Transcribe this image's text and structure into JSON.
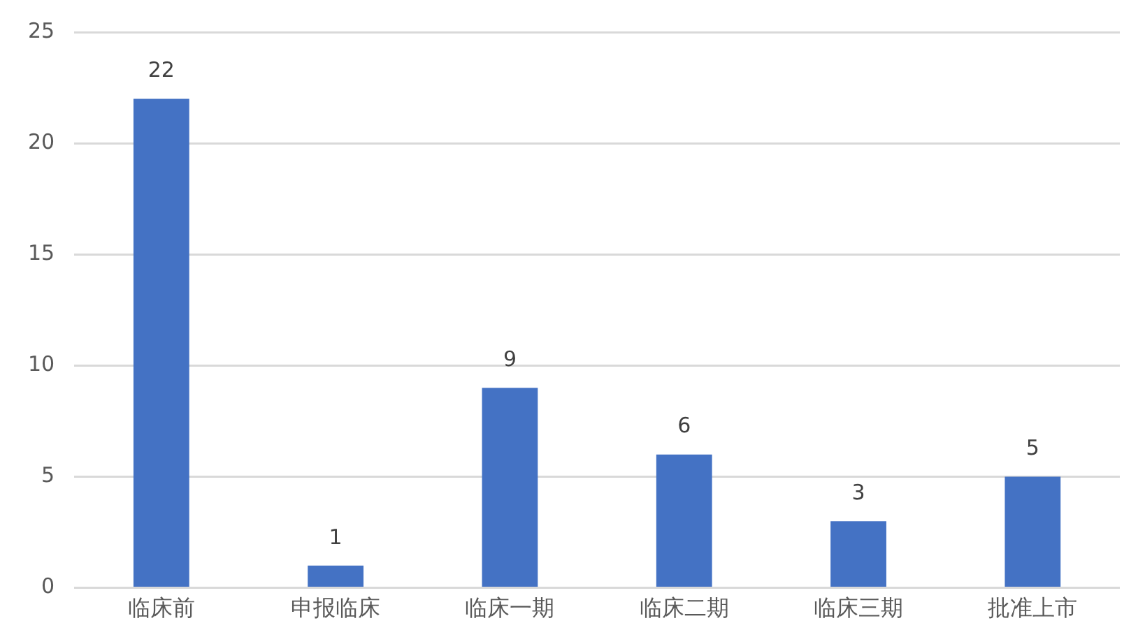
{
  "chart_data": {
    "type": "bar",
    "categories": [
      "临床前",
      "申报临床",
      "临床一期",
      "临床二期",
      "临床三期",
      "批准上市"
    ],
    "values": [
      22,
      1,
      9,
      6,
      3,
      5
    ],
    "color": "#4472c4",
    "ylim": [
      0,
      25
    ],
    "yticks": [
      0,
      5,
      10,
      15,
      20,
      25
    ],
    "grid": "y",
    "data_labels": true,
    "legend": false
  }
}
